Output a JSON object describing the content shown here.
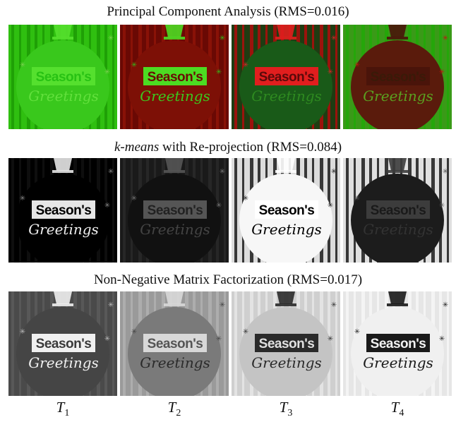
{
  "rows": [
    {
      "title": "Principal Component Analysis (RMS=0.016)",
      "title_italic_prefix": "",
      "tiles": [
        {
          "bg": "#2fbf10",
          "stripe": "#1c9a05",
          "ball": "#39c81c",
          "plate": "#55e02e",
          "plate_text": "#28c214",
          "script": "#62e03c",
          "star": "#7bd050"
        },
        {
          "bg": "#6a0904",
          "stripe": "#8e1408",
          "ball": "#7d1006",
          "plate": "#4cdc22",
          "plate_text": "#6a0c05",
          "script": "#3cc81e",
          "star": "#38b818"
        },
        {
          "bg": "#1f3c12",
          "stripe": "#b20c0c",
          "ball": "#195a18",
          "plate": "#e11e1e",
          "plate_text": "#5a0a0a",
          "script": "#2e8a20",
          "star": "#d42a2a"
        },
        {
          "bg": "#3a9a18",
          "stripe": "#22a808",
          "ball": "#5a1b0c",
          "plate": "#4a140a",
          "plate_text": "#3a1a08",
          "script": "#5aa020",
          "star": "#b81a10"
        }
      ]
    },
    {
      "title": "with Re-projection (RMS=0.084)",
      "title_italic_prefix": "k-means",
      "tiles": [
        {
          "bg": "#000000",
          "stripe": "#111111",
          "ball": "#000000",
          "plate": "#e6e6e6",
          "plate_text": "#000000",
          "script": "#eeeeee",
          "star": "#888888"
        },
        {
          "bg": "#1a1a1a",
          "stripe": "#2a2a2a",
          "ball": "#111111",
          "plate": "#555555",
          "plate_text": "#222222",
          "script": "#444444",
          "star": "#777777"
        },
        {
          "bg": "#dcdcdc",
          "stripe": "#1a1a1a",
          "ball": "#f7f7f7",
          "plate": "#ffffff",
          "plate_text": "#000000",
          "script": "#000000",
          "star": "#222222"
        },
        {
          "bg": "#e0e0e0",
          "stripe": "#1a1a1a",
          "ball": "#1c1c1c",
          "plate": "#3c3c3c",
          "plate_text": "#1a1a1a",
          "script": "#333333",
          "star": "#555555"
        }
      ]
    },
    {
      "title": "Non-Negative Matrix Factorization (RMS=0.017)",
      "title_italic_prefix": "",
      "tiles": [
        {
          "bg": "#4a4a4a",
          "stripe": "#5a5a5a",
          "ball": "#454545",
          "plate": "#f0f0f0",
          "plate_text": "#3a3a3a",
          "script": "#f0f0f0",
          "star": "#bbbbbb"
        },
        {
          "bg": "#9a9a9a",
          "stripe": "#b0b0b0",
          "ball": "#7a7a7a",
          "plate": "#d8d8d8",
          "plate_text": "#555555",
          "script": "#2a2a2a",
          "star": "#444444"
        },
        {
          "bg": "#cfcfcf",
          "stripe": "#e6e6e6",
          "ball": "#c4c4c4",
          "plate": "#2a2a2a",
          "plate_text": "#e0e0e0",
          "script": "#2a2a2a",
          "star": "#333333"
        },
        {
          "bg": "#e6e6e6",
          "stripe": "#f6f6f6",
          "ball": "#f0f0f0",
          "plate": "#1a1a1a",
          "plate_text": "#f2f2f2",
          "script": "#1a1a1a",
          "star": "#222222"
        }
      ]
    }
  ],
  "column_labels": [
    {
      "base": "T",
      "sub": "1"
    },
    {
      "base": "T",
      "sub": "2"
    },
    {
      "base": "T",
      "sub": "3"
    },
    {
      "base": "T",
      "sub": "4"
    }
  ],
  "image_text": {
    "plate": "Season's",
    "script": "Greetings"
  }
}
